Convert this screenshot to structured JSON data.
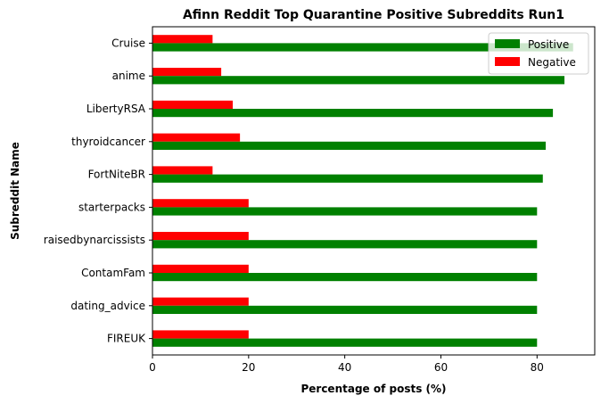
{
  "chart_data": {
    "type": "bar",
    "orientation": "horizontal",
    "title": "Afinn Reddit Top Quarantine Positive Subreddits Run1",
    "xlabel": "Percentage of posts (%)",
    "ylabel": "Subreddit Name",
    "xlim": [
      0,
      92
    ],
    "xticks": [
      "0",
      "20",
      "40",
      "60",
      "80"
    ],
    "categories": [
      "Cruise",
      "anime",
      "LibertyRSA",
      "thyroidcancer",
      "FortNiteBR",
      "starterpacks",
      "raisedbynarcissists",
      "ContamFam",
      "dating_advice",
      "FIREUK"
    ],
    "series": [
      {
        "name": "Positive",
        "color": "#008000",
        "values": [
          87.5,
          85.7,
          83.3,
          81.8,
          81.2,
          80.0,
          80.0,
          80.0,
          80.0,
          80.0
        ]
      },
      {
        "name": "Negative",
        "color": "#ff0000",
        "values": [
          12.5,
          14.3,
          16.7,
          18.2,
          12.5,
          20.0,
          20.0,
          20.0,
          20.0,
          20.0
        ]
      }
    ],
    "legend": {
      "placement": "top-right",
      "entries": [
        "Positive",
        "Negative"
      ]
    },
    "grid": false
  }
}
